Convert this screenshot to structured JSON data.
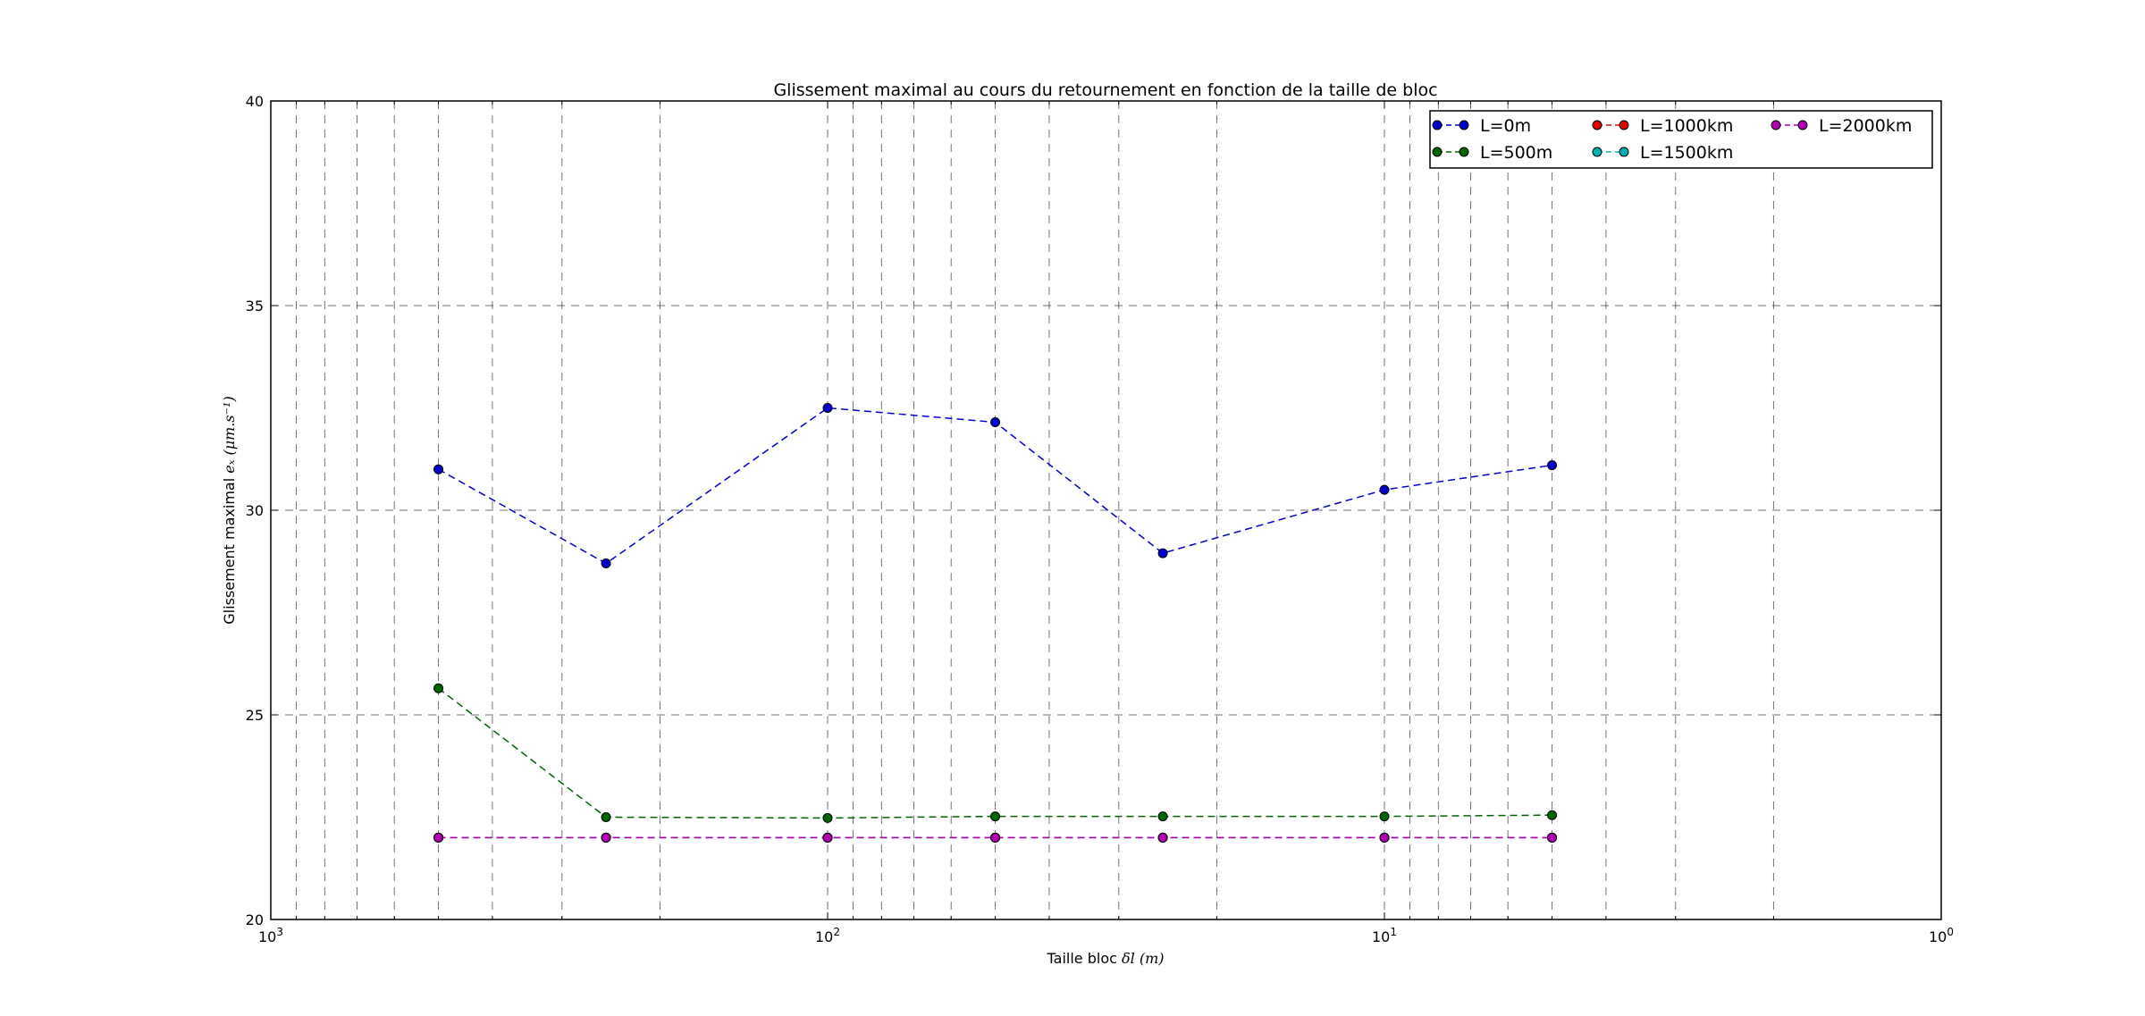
{
  "chart_data": {
    "type": "line",
    "title": "Glissement maximal au cours du retournement en fonction de la taille de bloc",
    "xlabel_prefix": "Taille bloc ",
    "xlabel_math": "δl (m)",
    "ylabel_prefix": "Glissement maximal ",
    "ylabel_math": "eₓ (μm.s⁻¹)",
    "x_scale": "log",
    "x_reversed": true,
    "xlim": [
      1000,
      1
    ],
    "ylim": [
      20,
      40
    ],
    "y_ticks": [
      20,
      25,
      30,
      35,
      40
    ],
    "x_ticks": [
      {
        "value": 1000,
        "base": "10",
        "exp": "3"
      },
      {
        "value": 100,
        "base": "10",
        "exp": "2"
      },
      {
        "value": 10,
        "base": "10",
        "exp": "1"
      },
      {
        "value": 1,
        "base": "10",
        "exp": "0"
      }
    ],
    "grid": true,
    "legend_position": "top-right",
    "legend_columns": 3,
    "x": [
      500,
      250,
      100,
      50,
      25,
      10,
      5
    ],
    "series": [
      {
        "name": "L=0m",
        "color": "#0000cc",
        "values": [
          31.0,
          28.7,
          32.5,
          32.15,
          28.95,
          30.5,
          31.1
        ]
      },
      {
        "name": "L=500m",
        "color": "#006400",
        "values": [
          25.65,
          22.5,
          22.48,
          22.52,
          22.52,
          22.52,
          22.55
        ]
      },
      {
        "name": "L=1000km",
        "color": "#e00000",
        "values": [
          22.0,
          22.0,
          22.0,
          22.0,
          22.0,
          22.0,
          22.0
        ]
      },
      {
        "name": "L=1500km",
        "color": "#00b0b0",
        "values": [
          22.0,
          22.0,
          22.0,
          22.0,
          22.0,
          22.0,
          22.0
        ]
      },
      {
        "name": "L=2000km",
        "color": "#b000b0",
        "values": [
          22.0,
          22.0,
          22.0,
          22.0,
          22.0,
          22.0,
          22.0
        ]
      }
    ]
  }
}
